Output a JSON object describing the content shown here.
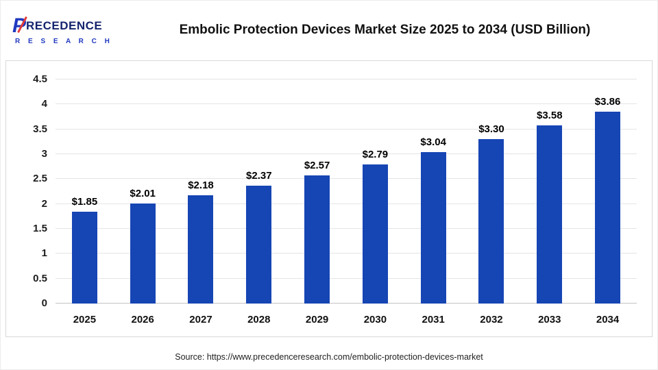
{
  "header": {
    "logo": {
      "p": "P",
      "rest": "RECEDENCE",
      "line2": "R E S E A R C H"
    },
    "title": "Embolic Protection Devices Market Size 2025 to 2034 (USD Billion)"
  },
  "footer": {
    "source": "Source: https://www.precedenceresearch.com/embolic-protection-devices-market"
  },
  "colors": {
    "bar": "#1645b4",
    "grid": "#e4e4e4",
    "axis_text": "#1c1c1c"
  },
  "chart_data": {
    "type": "bar",
    "title": "Embolic Protection Devices Market Size 2025 to 2034 (USD Billion)",
    "categories": [
      "2025",
      "2026",
      "2027",
      "2028",
      "2029",
      "2030",
      "2031",
      "2032",
      "2033",
      "2034"
    ],
    "values": [
      1.85,
      2.01,
      2.18,
      2.37,
      2.57,
      2.79,
      3.04,
      3.3,
      3.58,
      3.86
    ],
    "labels": [
      "$1.85",
      "$2.01",
      "$2.18",
      "$2.37",
      "$2.57",
      "$2.79",
      "$3.04",
      "$3.30",
      "$3.58",
      "$3.86"
    ],
    "xlabel": "",
    "ylabel": "",
    "ylim": [
      0,
      4.5
    ],
    "ytick_step": 0.5,
    "yticks": [
      "0",
      "0.5",
      "1",
      "1.5",
      "2",
      "2.5",
      "3",
      "3.5",
      "4",
      "4.5"
    ],
    "grid": true,
    "legend": "none",
    "source": "Source: https://www.precedenceresearch.com/embolic-protection-devices-market"
  }
}
